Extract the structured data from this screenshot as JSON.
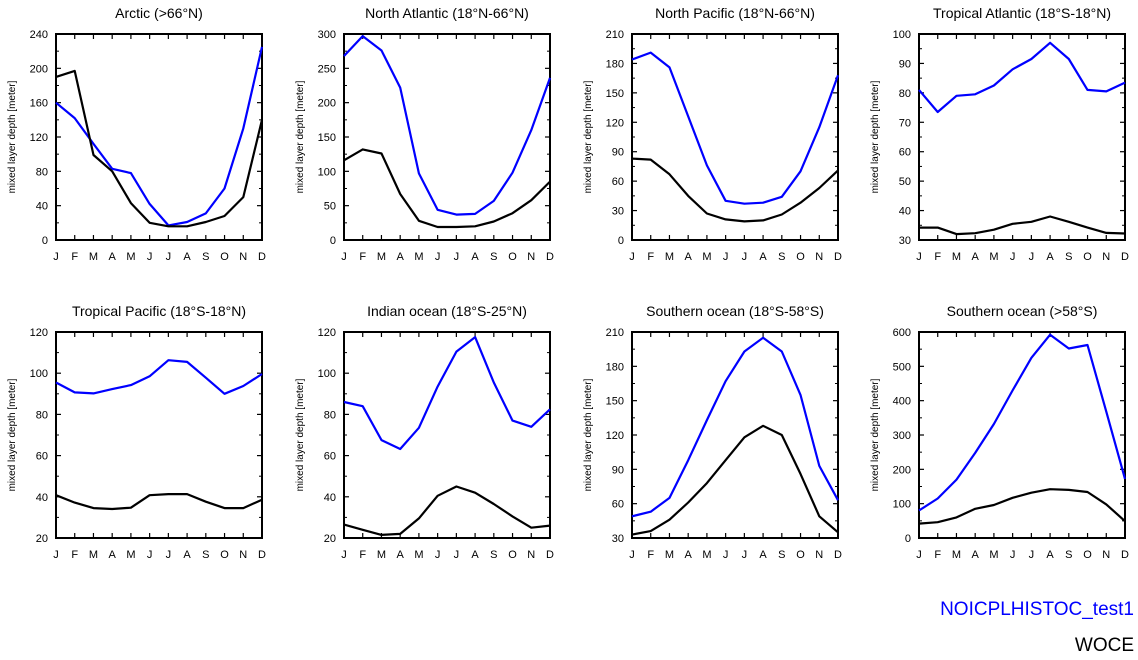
{
  "legend": {
    "series_a": "NOICPLHISTOC_test1",
    "series_b": "WOCE"
  },
  "colors": {
    "series_a": "#0000ff",
    "series_b": "#000000"
  },
  "chart_data": [
    {
      "type": "line",
      "title": "Arctic (>66°N)",
      "xlabel": "",
      "ylabel": "mixed layer depth [meter]",
      "categories": [
        "J",
        "F",
        "M",
        "A",
        "M",
        "J",
        "J",
        "A",
        "S",
        "O",
        "N",
        "D"
      ],
      "ylim": [
        0,
        240
      ],
      "yticks": [
        0,
        40,
        80,
        120,
        160,
        200,
        240
      ],
      "series": [
        {
          "name": "NOICPLHISTOC_test1",
          "values": [
            160,
            142,
            112,
            83,
            78,
            42,
            17,
            21,
            31,
            60,
            130,
            225
          ]
        },
        {
          "name": "WOCE",
          "values": [
            190,
            197,
            99,
            80,
            43,
            20,
            16,
            16,
            21,
            28,
            50,
            140
          ]
        }
      ]
    },
    {
      "type": "line",
      "title": "North Atlantic (18°N-66°N)",
      "xlabel": "",
      "ylabel": "mixed layer depth [meter]",
      "categories": [
        "J",
        "F",
        "M",
        "A",
        "M",
        "J",
        "J",
        "A",
        "S",
        "O",
        "N",
        "D"
      ],
      "ylim": [
        0,
        300
      ],
      "yticks": [
        0,
        50,
        100,
        150,
        200,
        250,
        300
      ],
      "series": [
        {
          "name": "NOICPLHISTOC_test1",
          "values": [
            268,
            297,
            276,
            222,
            97,
            44,
            37,
            38,
            57,
            98,
            160,
            236
          ]
        },
        {
          "name": "WOCE",
          "values": [
            116,
            132,
            126,
            67,
            28,
            19,
            19,
            20,
            27,
            39,
            58,
            85
          ]
        }
      ]
    },
    {
      "type": "line",
      "title": "North Pacific (18°N-66°N)",
      "xlabel": "",
      "ylabel": "mixed layer depth [meter]",
      "categories": [
        "J",
        "F",
        "M",
        "A",
        "M",
        "J",
        "J",
        "A",
        "S",
        "O",
        "N",
        "D"
      ],
      "ylim": [
        0,
        210
      ],
      "yticks": [
        0,
        30,
        60,
        90,
        120,
        150,
        180,
        210
      ],
      "series": [
        {
          "name": "NOICPLHISTOC_test1",
          "values": [
            184,
            191,
            176,
            126,
            76,
            40,
            37,
            38,
            44,
            70,
            115,
            168
          ]
        },
        {
          "name": "WOCE",
          "values": [
            83,
            82,
            67,
            45,
            27,
            21,
            19,
            20,
            26,
            38,
            53,
            71
          ]
        }
      ]
    },
    {
      "type": "line",
      "title": "Tropical Atlantic (18°S-18°N)",
      "xlabel": "",
      "ylabel": "mixed layer depth [meter]",
      "categories": [
        "J",
        "F",
        "M",
        "A",
        "M",
        "J",
        "J",
        "A",
        "S",
        "O",
        "N",
        "D"
      ],
      "ylim": [
        30,
        100
      ],
      "yticks": [
        30,
        40,
        50,
        60,
        70,
        80,
        90,
        100
      ],
      "series": [
        {
          "name": "NOICPLHISTOC_test1",
          "values": [
            81,
            73.5,
            79,
            79.5,
            82.5,
            88,
            91.5,
            97,
            91.5,
            81,
            80.5,
            83.5
          ]
        },
        {
          "name": "WOCE",
          "values": [
            34.2,
            34.2,
            32,
            32.3,
            33.5,
            35.5,
            36.2,
            38,
            36.2,
            34.2,
            32.4,
            32.2
          ]
        }
      ]
    },
    {
      "type": "line",
      "title": "Tropical Pacific (18°S-18°N)",
      "xlabel": "",
      "ylabel": "mixed layer depth [meter]",
      "categories": [
        "J",
        "F",
        "M",
        "A",
        "M",
        "J",
        "J",
        "A",
        "S",
        "O",
        "N",
        "D"
      ],
      "ylim": [
        20,
        120
      ],
      "yticks": [
        20,
        40,
        60,
        80,
        100,
        120
      ],
      "series": [
        {
          "name": "NOICPLHISTOC_test1",
          "values": [
            95.5,
            90.7,
            90.2,
            92.3,
            94.2,
            98.5,
            106.3,
            105.5,
            97.8,
            90,
            93.8,
            99.6
          ]
        },
        {
          "name": "WOCE",
          "values": [
            40.8,
            37.2,
            34.5,
            34.1,
            34.7,
            40.8,
            41.3,
            41.3,
            37.6,
            34.5,
            34.5,
            38.6
          ]
        }
      ]
    },
    {
      "type": "line",
      "title": "Indian ocean (18°S-25°N)",
      "xlabel": "",
      "ylabel": "mixed layer depth [meter]",
      "categories": [
        "J",
        "F",
        "M",
        "A",
        "M",
        "J",
        "J",
        "A",
        "S",
        "O",
        "N",
        "D"
      ],
      "ylim": [
        20,
        120
      ],
      "yticks": [
        20,
        40,
        60,
        80,
        100,
        120
      ],
      "series": [
        {
          "name": "NOICPLHISTOC_test1",
          "values": [
            86,
            84,
            67.5,
            63.2,
            73.5,
            93.5,
            110.5,
            117.5,
            95.5,
            77,
            74,
            82.5
          ]
        },
        {
          "name": "WOCE",
          "values": [
            26.5,
            24,
            21.5,
            22,
            29.5,
            40.5,
            45,
            42,
            36.5,
            30.5,
            25,
            26
          ]
        }
      ]
    },
    {
      "type": "line",
      "title": "Southern ocean (18°S-58°S)",
      "xlabel": "",
      "ylabel": "mixed layer depth [meter]",
      "categories": [
        "J",
        "F",
        "M",
        "A",
        "M",
        "J",
        "J",
        "A",
        "S",
        "O",
        "N",
        "D"
      ],
      "ylim": [
        30,
        210
      ],
      "yticks": [
        30,
        60,
        90,
        120,
        150,
        180,
        210
      ],
      "series": [
        {
          "name": "NOICPLHISTOC_test1",
          "values": [
            49,
            53,
            65,
            98,
            133,
            167,
            193,
            205,
            193,
            155,
            93,
            63
          ]
        },
        {
          "name": "WOCE",
          "values": [
            33,
            36,
            46,
            61,
            78,
            98,
            118,
            128,
            120,
            86,
            49,
            35
          ]
        }
      ]
    },
    {
      "type": "line",
      "title": "Southern ocean (>58°S)",
      "xlabel": "",
      "ylabel": "mixed layer depth [meter]",
      "categories": [
        "J",
        "F",
        "M",
        "A",
        "M",
        "J",
        "J",
        "A",
        "S",
        "O",
        "N",
        "D"
      ],
      "ylim": [
        0,
        600
      ],
      "yticks": [
        0,
        100,
        200,
        300,
        400,
        500,
        600
      ],
      "series": [
        {
          "name": "NOICPLHISTOC_test1",
          "values": [
            80,
            115,
            170,
            248,
            332,
            430,
            525,
            592,
            552,
            562,
            368,
            172
          ]
        },
        {
          "name": "WOCE",
          "values": [
            42,
            46,
            60,
            85,
            96,
            117,
            132,
            142,
            140,
            134,
            98,
            49
          ]
        }
      ]
    }
  ]
}
